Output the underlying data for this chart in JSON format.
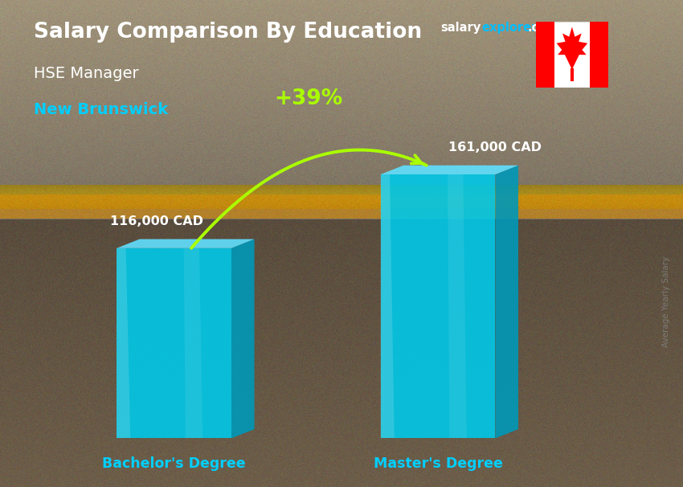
{
  "title": "Salary Comparison By Education",
  "subtitle_job": "HSE Manager",
  "subtitle_location": "New Brunswick",
  "categories": [
    "Bachelor's Degree",
    "Master's Degree"
  ],
  "values": [
    116000,
    161000
  ],
  "value_labels": [
    "116,000 CAD",
    "161,000 CAD"
  ],
  "pct_change": "+39%",
  "pct_color": "#aaff00",
  "bar_front_color": "#00c8e8",
  "bar_left_color": "#40d8f8",
  "bar_right_color": "#0098b8",
  "bar_top_color": "#60e0ff",
  "bar_bottom_color": "#0070a0",
  "bg_top_color": "#5a6a7a",
  "bg_bottom_color": "#8a9aaa",
  "site_salary_color": "#ffffff",
  "site_explorer_color": "#00bfff",
  "site_com_color": "#ffffff",
  "ylabel_text": "Average Yearly Salary",
  "ylabel_color": "#888888",
  "category_color": "#00cfff",
  "value_label_color": "#ffffff",
  "title_color": "#ffffff",
  "job_color": "#ffffff",
  "location_color": "#00cfff",
  "fig_width": 8.5,
  "fig_height": 6.06,
  "dpi": 100
}
